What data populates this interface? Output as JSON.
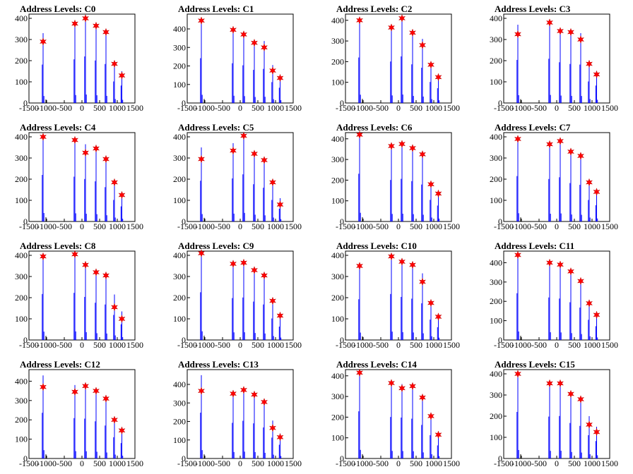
{
  "chart_data": [
    {
      "type": "bar",
      "title": "Address Levels: C0",
      "xlim": [
        -1500,
        1500
      ],
      "ylim": [
        0,
        420
      ],
      "x_ticks": [
        -1500,
        -1000,
        -500,
        0,
        500,
        1000,
        1500
      ],
      "y_ticks": [
        0,
        100,
        200,
        300,
        400
      ],
      "peaks": [
        {
          "x": -1100,
          "value": 290,
          "raw": 330
        },
        {
          "x": -200,
          "value": 375,
          "raw": 375
        },
        {
          "x": 100,
          "value": 400,
          "raw": 400
        },
        {
          "x": 400,
          "value": 365,
          "raw": 365
        },
        {
          "x": 680,
          "value": 335,
          "raw": 335
        },
        {
          "x": 920,
          "value": 185,
          "raw": 185
        },
        {
          "x": 1130,
          "value": 130,
          "raw": 150
        }
      ]
    },
    {
      "type": "bar",
      "title": "Address Levels: C1",
      "xlim": [
        -1500,
        1500
      ],
      "ylim": [
        0,
        480
      ],
      "x_ticks": [
        -1500,
        -1000,
        -500,
        0,
        500,
        1000,
        1500
      ],
      "y_ticks": [
        0,
        100,
        200,
        300,
        400
      ],
      "peaks": [
        {
          "x": -1100,
          "value": 445,
          "raw": 440
        },
        {
          "x": -200,
          "value": 395,
          "raw": 390
        },
        {
          "x": 100,
          "value": 370,
          "raw": 370
        },
        {
          "x": 400,
          "value": 325,
          "raw": 325
        },
        {
          "x": 680,
          "value": 300,
          "raw": 335
        },
        {
          "x": 920,
          "value": 175,
          "raw": 205
        },
        {
          "x": 1130,
          "value": 135,
          "raw": 150
        }
      ]
    },
    {
      "type": "bar",
      "title": "Address Levels: C2",
      "xlim": [
        -1500,
        1500
      ],
      "ylim": [
        0,
        430
      ],
      "x_ticks": [
        -1500,
        -1000,
        -500,
        0,
        500,
        1000,
        1500
      ],
      "y_ticks": [
        0,
        100,
        200,
        300,
        400
      ],
      "peaks": [
        {
          "x": -1100,
          "value": 400,
          "raw": 400
        },
        {
          "x": -200,
          "value": 365,
          "raw": 365
        },
        {
          "x": 100,
          "value": 410,
          "raw": 410
        },
        {
          "x": 400,
          "value": 340,
          "raw": 340
        },
        {
          "x": 680,
          "value": 280,
          "raw": 310
        },
        {
          "x": 920,
          "value": 185,
          "raw": 185
        },
        {
          "x": 1130,
          "value": 125,
          "raw": 130
        }
      ]
    },
    {
      "type": "bar",
      "title": "Address Levels: C3",
      "xlim": [
        -1500,
        1500
      ],
      "ylim": [
        0,
        420
      ],
      "x_ticks": [
        -1500,
        -1000,
        -500,
        0,
        500,
        1000,
        1500
      ],
      "y_ticks": [
        0,
        100,
        200,
        300,
        400
      ],
      "peaks": [
        {
          "x": -1100,
          "value": 325,
          "raw": 370
        },
        {
          "x": -200,
          "value": 380,
          "raw": 380
        },
        {
          "x": 100,
          "value": 340,
          "raw": 350
        },
        {
          "x": 400,
          "value": 335,
          "raw": 335
        },
        {
          "x": 680,
          "value": 300,
          "raw": 330
        },
        {
          "x": 920,
          "value": 185,
          "raw": 185
        },
        {
          "x": 1130,
          "value": 135,
          "raw": 150
        }
      ]
    },
    {
      "type": "bar",
      "title": "Address Levels: C4",
      "xlim": [
        -1500,
        1500
      ],
      "ylim": [
        0,
        420
      ],
      "x_ticks": [
        -1500,
        -1000,
        -500,
        0,
        500,
        1000,
        1500
      ],
      "y_ticks": [
        0,
        100,
        200,
        300,
        400
      ],
      "peaks": [
        {
          "x": -1100,
          "value": 400,
          "raw": 400
        },
        {
          "x": -200,
          "value": 385,
          "raw": 385
        },
        {
          "x": 100,
          "value": 325,
          "raw": 365
        },
        {
          "x": 400,
          "value": 345,
          "raw": 345
        },
        {
          "x": 680,
          "value": 295,
          "raw": 295
        },
        {
          "x": 920,
          "value": 185,
          "raw": 185
        },
        {
          "x": 1130,
          "value": 125,
          "raw": 130
        }
      ]
    },
    {
      "type": "bar",
      "title": "Address Levels: C5",
      "xlim": [
        -1500,
        1500
      ],
      "ylim": [
        0,
        420
      ],
      "x_ticks": [
        -1500,
        -1000,
        -500,
        0,
        500,
        1000,
        1500
      ],
      "y_ticks": [
        0,
        100,
        200,
        300,
        400
      ],
      "peaks": [
        {
          "x": -1100,
          "value": 295,
          "raw": 350
        },
        {
          "x": -200,
          "value": 335,
          "raw": 370
        },
        {
          "x": 100,
          "value": 405,
          "raw": 405
        },
        {
          "x": 400,
          "value": 320,
          "raw": 320
        },
        {
          "x": 680,
          "value": 290,
          "raw": 290
        },
        {
          "x": 920,
          "value": 185,
          "raw": 185
        },
        {
          "x": 1130,
          "value": 80,
          "raw": 110
        }
      ]
    },
    {
      "type": "bar",
      "title": "Address Levels: C6",
      "xlim": [
        -1500,
        1500
      ],
      "ylim": [
        0,
        430
      ],
      "x_ticks": [
        -1500,
        -1000,
        -500,
        0,
        500,
        1000,
        1500
      ],
      "y_ticks": [
        0,
        100,
        200,
        300,
        400
      ],
      "peaks": [
        {
          "x": -1100,
          "value": 420,
          "raw": 420
        },
        {
          "x": -200,
          "value": 365,
          "raw": 365
        },
        {
          "x": 100,
          "value": 375,
          "raw": 375
        },
        {
          "x": 400,
          "value": 355,
          "raw": 355
        },
        {
          "x": 680,
          "value": 325,
          "raw": 325
        },
        {
          "x": 920,
          "value": 180,
          "raw": 190
        },
        {
          "x": 1130,
          "value": 135,
          "raw": 140
        }
      ]
    },
    {
      "type": "bar",
      "title": "Address Levels: C7",
      "xlim": [
        -1500,
        1500
      ],
      "ylim": [
        0,
        420
      ],
      "x_ticks": [
        -1500,
        -1000,
        -500,
        0,
        500,
        1000,
        1500
      ],
      "y_ticks": [
        0,
        100,
        200,
        300,
        400
      ],
      "peaks": [
        {
          "x": -1100,
          "value": 390,
          "raw": 390
        },
        {
          "x": -200,
          "value": 365,
          "raw": 365
        },
        {
          "x": 100,
          "value": 380,
          "raw": 380
        },
        {
          "x": 400,
          "value": 330,
          "raw": 330
        },
        {
          "x": 680,
          "value": 310,
          "raw": 315
        },
        {
          "x": 920,
          "value": 185,
          "raw": 185
        },
        {
          "x": 1130,
          "value": 140,
          "raw": 140
        }
      ]
    },
    {
      "type": "bar",
      "title": "Address Levels: C8",
      "xlim": [
        -1500,
        1500
      ],
      "ylim": [
        0,
        420
      ],
      "x_ticks": [
        -1500,
        -1000,
        -500,
        0,
        500,
        1000,
        1500
      ],
      "y_ticks": [
        0,
        100,
        200,
        300,
        400
      ],
      "peaks": [
        {
          "x": -1100,
          "value": 395,
          "raw": 395
        },
        {
          "x": -200,
          "value": 405,
          "raw": 405
        },
        {
          "x": 100,
          "value": 355,
          "raw": 370
        },
        {
          "x": 400,
          "value": 320,
          "raw": 320
        },
        {
          "x": 680,
          "value": 305,
          "raw": 305
        },
        {
          "x": 920,
          "value": 155,
          "raw": 215
        },
        {
          "x": 1130,
          "value": 100,
          "raw": 135
        }
      ]
    },
    {
      "type": "bar",
      "title": "Address Levels: C9",
      "xlim": [
        -1500,
        1500
      ],
      "ylim": [
        0,
        420
      ],
      "x_ticks": [
        -1500,
        -1000,
        -500,
        0,
        500,
        1000,
        1500
      ],
      "y_ticks": [
        0,
        100,
        200,
        300,
        400
      ],
      "peaks": [
        {
          "x": -1100,
          "value": 410,
          "raw": 410
        },
        {
          "x": -200,
          "value": 360,
          "raw": 360
        },
        {
          "x": 100,
          "value": 365,
          "raw": 365
        },
        {
          "x": 400,
          "value": 330,
          "raw": 330
        },
        {
          "x": 680,
          "value": 305,
          "raw": 305
        },
        {
          "x": 920,
          "value": 185,
          "raw": 185
        },
        {
          "x": 1130,
          "value": 115,
          "raw": 115
        }
      ]
    },
    {
      "type": "bar",
      "title": "Address Levels: C10",
      "xlim": [
        -1500,
        1500
      ],
      "ylim": [
        0,
        420
      ],
      "x_ticks": [
        -1500,
        -1000,
        -500,
        0,
        500,
        1000,
        1500
      ],
      "y_ticks": [
        0,
        100,
        200,
        300,
        400
      ],
      "peaks": [
        {
          "x": -1100,
          "value": 350,
          "raw": 350
        },
        {
          "x": -200,
          "value": 395,
          "raw": 395
        },
        {
          "x": 100,
          "value": 370,
          "raw": 370
        },
        {
          "x": 400,
          "value": 355,
          "raw": 355
        },
        {
          "x": 680,
          "value": 275,
          "raw": 315
        },
        {
          "x": 920,
          "value": 175,
          "raw": 175
        },
        {
          "x": 1130,
          "value": 110,
          "raw": 110
        }
      ]
    },
    {
      "type": "bar",
      "title": "Address Levels: C11",
      "xlim": [
        -1500,
        1500
      ],
      "ylim": [
        0,
        460
      ],
      "x_ticks": [
        -1500,
        -1000,
        -500,
        0,
        500,
        1000,
        1500
      ],
      "y_ticks": [
        0,
        100,
        200,
        300,
        400
      ],
      "peaks": [
        {
          "x": -1100,
          "value": 440,
          "raw": 440
        },
        {
          "x": -200,
          "value": 400,
          "raw": 400
        },
        {
          "x": 100,
          "value": 390,
          "raw": 390
        },
        {
          "x": 400,
          "value": 355,
          "raw": 355
        },
        {
          "x": 680,
          "value": 305,
          "raw": 305
        },
        {
          "x": 920,
          "value": 190,
          "raw": 190
        },
        {
          "x": 1130,
          "value": 130,
          "raw": 130
        }
      ]
    },
    {
      "type": "bar",
      "title": "Address Levels: C12",
      "xlim": [
        -1500,
        1500
      ],
      "ylim": [
        0,
        460
      ],
      "x_ticks": [
        -1500,
        -1000,
        -500,
        0,
        500,
        1000,
        1500
      ],
      "y_ticks": [
        0,
        100,
        200,
        300,
        400
      ],
      "peaks": [
        {
          "x": -1100,
          "value": 370,
          "raw": 430
        },
        {
          "x": -200,
          "value": 345,
          "raw": 380
        },
        {
          "x": 100,
          "value": 375,
          "raw": 375
        },
        {
          "x": 400,
          "value": 350,
          "raw": 350
        },
        {
          "x": 680,
          "value": 310,
          "raw": 310
        },
        {
          "x": 920,
          "value": 200,
          "raw": 200
        },
        {
          "x": 1130,
          "value": 145,
          "raw": 145
        }
      ]
    },
    {
      "type": "bar",
      "title": "Address Levels: C13",
      "xlim": [
        -1500,
        1500
      ],
      "ylim": [
        0,
        480
      ],
      "x_ticks": [
        -1500,
        -1000,
        -500,
        0,
        500,
        1000,
        1500
      ],
      "y_ticks": [
        0,
        100,
        200,
        300,
        400
      ],
      "peaks": [
        {
          "x": -1100,
          "value": 365,
          "raw": 450
        },
        {
          "x": -200,
          "value": 350,
          "raw": 350
        },
        {
          "x": 100,
          "value": 370,
          "raw": 370
        },
        {
          "x": 400,
          "value": 345,
          "raw": 345
        },
        {
          "x": 680,
          "value": 305,
          "raw": 305
        },
        {
          "x": 920,
          "value": 165,
          "raw": 205
        },
        {
          "x": 1130,
          "value": 115,
          "raw": 135
        }
      ]
    },
    {
      "type": "bar",
      "title": "Address Levels: C14",
      "xlim": [
        -1500,
        1500
      ],
      "ylim": [
        0,
        430
      ],
      "x_ticks": [
        -1500,
        -1000,
        -500,
        0,
        500,
        1000,
        1500
      ],
      "y_ticks": [
        0,
        100,
        200,
        300,
        400
      ],
      "peaks": [
        {
          "x": -1100,
          "value": 415,
          "raw": 415
        },
        {
          "x": -200,
          "value": 365,
          "raw": 365
        },
        {
          "x": 100,
          "value": 340,
          "raw": 360
        },
        {
          "x": 400,
          "value": 350,
          "raw": 350
        },
        {
          "x": 680,
          "value": 295,
          "raw": 295
        },
        {
          "x": 920,
          "value": 205,
          "raw": 205
        },
        {
          "x": 1130,
          "value": 115,
          "raw": 115
        }
      ]
    },
    {
      "type": "bar",
      "title": "Address Levels: C15",
      "xlim": [
        -1500,
        1500
      ],
      "ylim": [
        0,
        420
      ],
      "x_ticks": [
        -1500,
        -1000,
        -500,
        0,
        500,
        1000,
        1500
      ],
      "y_ticks": [
        0,
        100,
        200,
        300,
        400
      ],
      "peaks": [
        {
          "x": -1100,
          "value": 400,
          "raw": 400
        },
        {
          "x": -200,
          "value": 355,
          "raw": 360
        },
        {
          "x": 100,
          "value": 355,
          "raw": 365
        },
        {
          "x": 400,
          "value": 305,
          "raw": 305
        },
        {
          "x": 680,
          "value": 280,
          "raw": 280
        },
        {
          "x": 920,
          "value": 160,
          "raw": 200
        },
        {
          "x": 1130,
          "value": 125,
          "raw": 150
        }
      ]
    }
  ],
  "colors": {
    "bars": "#0000ff",
    "markers": "#ff0000",
    "axes": "#000000"
  },
  "marker_icon": "red-star-icon"
}
